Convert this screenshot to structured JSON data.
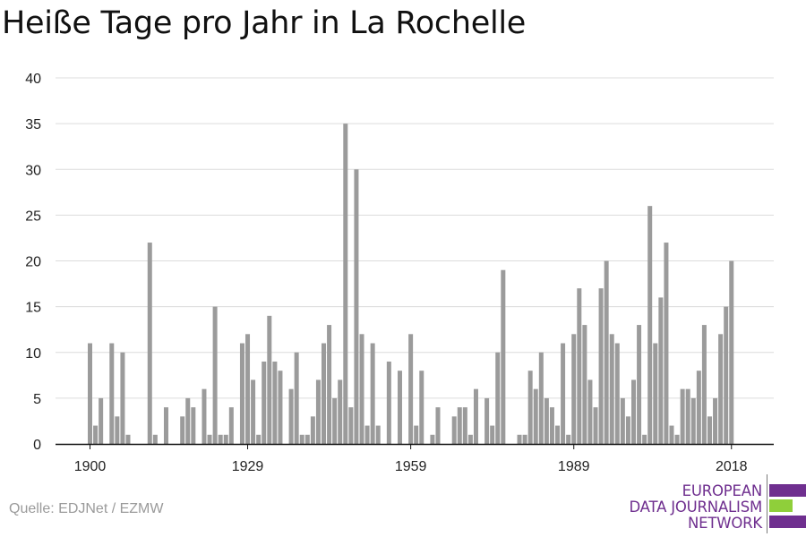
{
  "chart_data": {
    "type": "bar",
    "title": "Heiße Tage pro Jahr in La Rochelle",
    "xlabel": "",
    "ylabel": "",
    "x_start": 1900,
    "x_end": 2020,
    "x_tick_labels": [
      "1900",
      "1929",
      "1959",
      "1989",
      "2018"
    ],
    "y_ticks": [
      0,
      5,
      10,
      15,
      20,
      25,
      30,
      35,
      40
    ],
    "ylim": [
      0,
      40
    ],
    "grid": true,
    "bar_color": "#9b9b9b",
    "values": [
      11,
      2,
      5,
      0,
      11,
      3,
      10,
      1,
      0,
      0,
      0,
      22,
      1,
      0,
      4,
      0,
      0,
      3,
      5,
      4,
      0,
      6,
      1,
      15,
      1,
      1,
      4,
      0,
      11,
      12,
      7,
      1,
      9,
      14,
      9,
      8,
      0,
      6,
      10,
      1,
      1,
      3,
      7,
      11,
      13,
      5,
      7,
      35,
      4,
      30,
      12,
      2,
      11,
      2,
      0,
      9,
      0,
      8,
      0,
      12,
      2,
      8,
      0,
      1,
      4,
      0,
      0,
      3,
      4,
      4,
      1,
      6,
      0,
      5,
      2,
      10,
      19,
      0,
      0,
      1,
      1,
      8,
      6,
      10,
      5,
      4,
      2,
      11,
      1,
      12,
      17,
      13,
      7,
      4,
      17,
      20,
      12,
      11,
      5,
      3,
      7,
      13,
      1,
      26,
      11,
      16,
      22,
      2,
      1,
      6,
      6,
      5,
      8,
      13,
      3,
      5,
      12,
      15,
      20,
      0,
      0
    ]
  },
  "source_text": "Quelle: EDJNet / EZMW",
  "logo": {
    "line1": "EUROPEAN",
    "line2": "DATA JOURNALISM",
    "line3": "NETWORK",
    "color_purple": "#6f2f8f",
    "color_green": "#8fcf3a"
  }
}
